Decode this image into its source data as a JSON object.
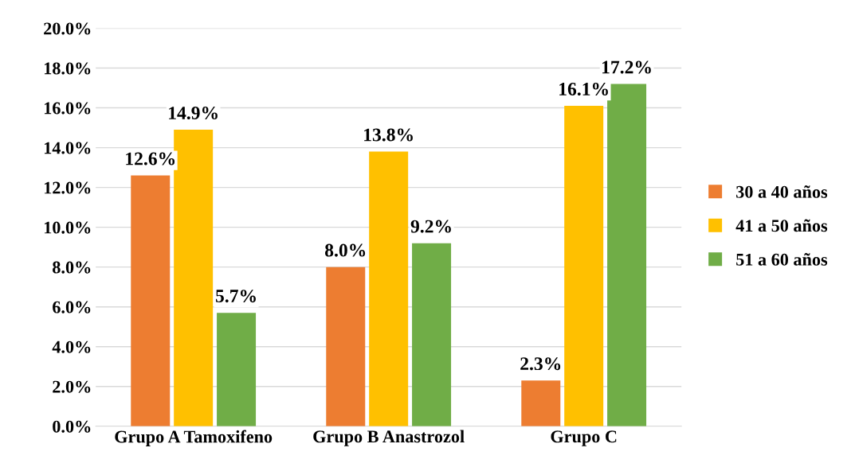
{
  "chart_data": {
    "type": "bar",
    "categories": [
      "Grupo A Tamoxifeno",
      "Grupo B Anastrozol",
      "Grupo C"
    ],
    "series": [
      {
        "name": "30 a 40 años",
        "color": "#ed7d31",
        "values": [
          12.6,
          8.0,
          2.3
        ],
        "value_labels": [
          "12.6%",
          "8.0%",
          "2.3%"
        ]
      },
      {
        "name": "41 a 50 años",
        "color": "#ffc000",
        "values": [
          14.9,
          13.8,
          16.1
        ],
        "value_labels": [
          "14.9%",
          "13.8%",
          "16.1%"
        ]
      },
      {
        "name": "51 a 60 años",
        "color": "#70ad47",
        "values": [
          5.7,
          9.2,
          17.2
        ],
        "value_labels": [
          "5.7%",
          "9.2%",
          "17.2%"
        ]
      }
    ],
    "ylim": [
      0,
      20
    ],
    "yticks": [
      {
        "value": 0,
        "label": "0.0%"
      },
      {
        "value": 2,
        "label": "2.0%"
      },
      {
        "value": 4,
        "label": "4.0%"
      },
      {
        "value": 6,
        "label": "6.0%"
      },
      {
        "value": 8,
        "label": "8.0%"
      },
      {
        "value": 10,
        "label": "10.0%"
      },
      {
        "value": 12,
        "label": "12.0%"
      },
      {
        "value": 14,
        "label": "14.0%"
      },
      {
        "value": 16,
        "label": "16.0%"
      },
      {
        "value": 18,
        "label": "18.0%"
      },
      {
        "value": 20,
        "label": "20.0%"
      }
    ],
    "grid": "y",
    "legend": "right"
  }
}
